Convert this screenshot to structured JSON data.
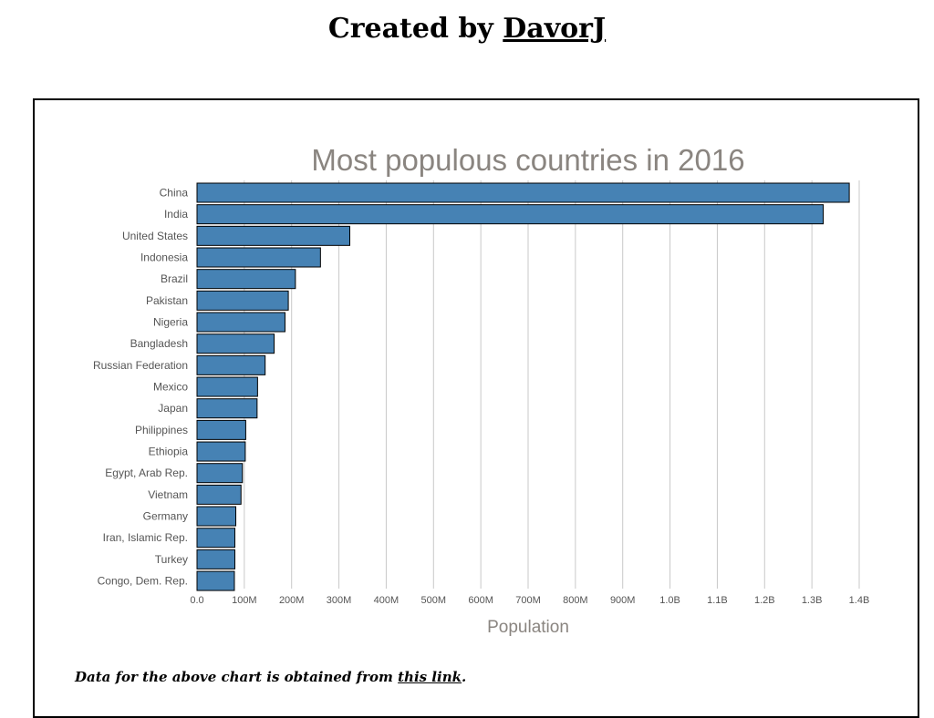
{
  "header": {
    "prefix": "Created by ",
    "author": "DavorJ"
  },
  "footer": {
    "prefix": "Data for the above chart is obtained from ",
    "link_text": "this link",
    "suffix": "."
  },
  "colors": {
    "bar_fill": "#4682b4",
    "bar_stroke": "#000000",
    "grid": "#c8c8c8",
    "title": "#8a8580",
    "tick_text": "#555555"
  },
  "chart_data": {
    "type": "bar",
    "orientation": "horizontal",
    "title": "Most populous countries in 2016",
    "xlabel": "Population",
    "ylabel": "",
    "xlim": [
      0,
      1400000000
    ],
    "grid": "vertical",
    "x_ticks": [
      0,
      100000000,
      200000000,
      300000000,
      400000000,
      500000000,
      600000000,
      700000000,
      800000000,
      900000000,
      1000000000,
      1100000000,
      1200000000,
      1300000000,
      1400000000
    ],
    "x_tick_labels": [
      "0.0",
      "100M",
      "200M",
      "300M",
      "400M",
      "500M",
      "600M",
      "700M",
      "800M",
      "900M",
      "1.0B",
      "1.1B",
      "1.2B",
      "1.3B",
      "1.4B"
    ],
    "categories": [
      "China",
      "India",
      "United States",
      "Indonesia",
      "Brazil",
      "Pakistan",
      "Nigeria",
      "Bangladesh",
      "Russian Federation",
      "Mexico",
      "Japan",
      "Philippines",
      "Ethiopia",
      "Egypt, Arab Rep.",
      "Vietnam",
      "Germany",
      "Iran, Islamic Rep.",
      "Turkey",
      "Congo, Dem. Rep."
    ],
    "values": [
      1379000000,
      1324000000,
      323000000,
      261000000,
      208000000,
      193000000,
      186000000,
      163000000,
      144000000,
      128000000,
      127000000,
      103000000,
      102000000,
      96000000,
      93000000,
      82000000,
      80000000,
      80000000,
      79000000
    ]
  }
}
